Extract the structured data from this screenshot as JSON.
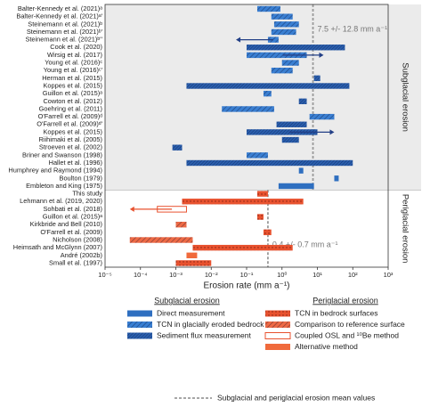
{
  "chart_data": {
    "type": "range-bar",
    "x_label": "Erosion rate (mm a⁻¹)",
    "xscale": "log",
    "xlim": [
      1e-05,
      1000
    ],
    "xticks": [
      {
        "value": 1e-05,
        "label": "10⁻⁵"
      },
      {
        "value": 0.0001,
        "label": "10⁻⁴"
      },
      {
        "value": 0.001,
        "label": "10⁻³"
      },
      {
        "value": 0.01,
        "label": "10⁻²"
      },
      {
        "value": 0.1,
        "label": "10⁻¹"
      },
      {
        "value": 1,
        "label": "10⁰"
      },
      {
        "value": 10,
        "label": "10¹"
      },
      {
        "value": 100,
        "label": "10²"
      },
      {
        "value": 1000,
        "label": "10³"
      }
    ],
    "groups": [
      {
        "name": "Subglacial erosion",
        "background": "#ebebeb",
        "mean": {
          "value": 7.5,
          "label": "7.5 +/- 12.8 mm a⁻¹"
        },
        "categories": [
          "Balter-Kennedy et al. (2021)ᵃ",
          "Balter-Kennedy et al. (2021)ᵃ'",
          "Steinemann et al. (2021)ᵇ",
          "Steinemann et al. (2021)ᵇ'",
          "Steinemann et al. (2021)ᵇ''",
          "Cook et al. (2020)",
          "Wirsig et al. (2017)",
          "Young et al. (2016)ᶜ",
          "Young et al. (2016)ᶜ'",
          "Herman et al. (2015)",
          "Koppes et al. (2015)",
          "Guillon et al. (2015)ᵃ",
          "Cowton et al. (2012)",
          "Goehring et al. (2011)",
          "O'Farrell et al. (2009)ᵈ",
          "O'Farrell et al. (2009)ᵈ'",
          "Koppes et al. (2015)",
          "Riihimaki et al. (2005)",
          "Stroeven et al. (2002)",
          "Briner and Swanson (1998)",
          "Hallet et al. (1996)",
          "Humphrey and Raymond (1994)",
          "Boulton (1979)",
          "Embleton and King (1975)"
        ]
      },
      {
        "name": "Periglacial erosion",
        "background": "#ffffff",
        "mean": {
          "value": 0.4,
          "label": "0.4 +/- 0.7 mm a⁻¹"
        },
        "categories": [
          "This study",
          "Lehmann et al. (2019, 2020)",
          "Sohbati et al. (2018)",
          "Guillon et al. (2015)ᵃ",
          "Kirkbride and Bell (2010)",
          "O'Farrell et al. (2009)",
          "Nicholson (2008)",
          "Heimsath and McGlynn (2007)",
          "André (2002b)",
          "Small et al. (1997)"
        ]
      }
    ],
    "mean_legend": "Subglacial and periglacial erosion mean values",
    "series": [
      {
        "name": "Direct measurement",
        "group": 0,
        "color": "#2f6fc0",
        "pattern": "solid",
        "values": [
          null,
          null,
          null,
          null,
          null,
          null,
          null,
          null,
          null,
          null,
          null,
          null,
          null,
          null,
          null,
          null,
          null,
          null,
          null,
          null,
          null,
          [
            3,
            4
          ],
          [
            30,
            40
          ],
          [
            0.8,
            8
          ],
          null,
          null,
          null,
          null,
          null,
          null,
          null,
          null,
          null,
          null
        ]
      },
      {
        "name": "TCN in glacially eroded bedrock",
        "group": 0,
        "color": "#3a7fd2",
        "pattern": "hatch",
        "values": [
          [
            0.2,
            0.9
          ],
          [
            0.5,
            2
          ],
          [
            0.6,
            3
          ],
          [
            0.5,
            2.5
          ],
          [
            0.4,
            0.8,
            0.05
          ],
          null,
          [
            0.1,
            5,
            15
          ],
          [
            1,
            3
          ],
          [
            0.5,
            2
          ],
          null,
          null,
          [
            0.3,
            0.5
          ],
          null,
          [
            0.02,
            0.6
          ],
          [
            6,
            30
          ],
          null,
          null,
          null,
          null,
          [
            0.1,
            0.4
          ],
          null,
          null,
          null,
          null,
          null,
          null,
          null,
          null,
          null,
          null,
          null,
          null,
          null,
          null
        ]
      },
      {
        "name": "Sediment flux measurement",
        "group": 0,
        "color": "#2a5fae",
        "pattern": "dense",
        "values": [
          null,
          null,
          null,
          null,
          null,
          [
            0.1,
            60
          ],
          null,
          null,
          null,
          [
            8,
            12
          ],
          [
            0.002,
            80
          ],
          null,
          [
            3,
            5
          ],
          null,
          null,
          [
            0.7,
            5
          ],
          [
            0.1,
            10,
            30
          ],
          [
            1,
            3
          ],
          [
            0.0008,
            0.0015
          ],
          null,
          [
            0.002,
            100
          ],
          null,
          null,
          null,
          null,
          null,
          null,
          null,
          null,
          null,
          null,
          null,
          null,
          null
        ]
      },
      {
        "name": "TCN in bedrock surfaces",
        "group": 1,
        "color": "#e8522f",
        "pattern": "dots",
        "values": [
          null,
          null,
          null,
          null,
          null,
          null,
          null,
          null,
          null,
          null,
          null,
          null,
          null,
          null,
          null,
          null,
          null,
          null,
          null,
          null,
          null,
          null,
          null,
          null,
          [
            0.2,
            0.4
          ],
          [
            0.0015,
            4
          ],
          null,
          [
            0.2,
            0.3
          ],
          null,
          [
            0.3,
            0.5
          ],
          null,
          [
            0.003,
            2
          ],
          null,
          [
            0.001,
            0.01
          ]
        ]
      },
      {
        "name": "Comparison to reference surface",
        "group": 1,
        "color": "#ee6a45",
        "pattern": "hatch",
        "values": [
          null,
          null,
          null,
          null,
          null,
          null,
          null,
          null,
          null,
          null,
          null,
          null,
          null,
          null,
          null,
          null,
          null,
          null,
          null,
          null,
          null,
          null,
          null,
          null,
          null,
          null,
          null,
          null,
          [
            0.001,
            0.002
          ],
          null,
          [
            5e-05,
            0.003
          ],
          null,
          null,
          null
        ]
      },
      {
        "name": "Coupled OSL and ¹⁰Be method",
        "group": 1,
        "color": "#e8522f",
        "pattern": "outline",
        "values": [
          null,
          null,
          null,
          null,
          null,
          null,
          null,
          null,
          null,
          null,
          null,
          null,
          null,
          null,
          null,
          null,
          null,
          null,
          null,
          null,
          null,
          null,
          null,
          null,
          null,
          null,
          [
            0.0003,
            0.002,
            5e-05
          ],
          null,
          null,
          null,
          null,
          null,
          null,
          null
        ]
      },
      {
        "name": "Alternative method",
        "group": 1,
        "color": "#f06a3c",
        "pattern": "solid",
        "values": [
          null,
          null,
          null,
          null,
          null,
          null,
          null,
          null,
          null,
          null,
          null,
          null,
          null,
          null,
          null,
          null,
          null,
          null,
          null,
          null,
          null,
          null,
          null,
          null,
          null,
          null,
          null,
          null,
          null,
          null,
          null,
          null,
          [
            0.002,
            0.004
          ],
          null
        ]
      }
    ]
  }
}
